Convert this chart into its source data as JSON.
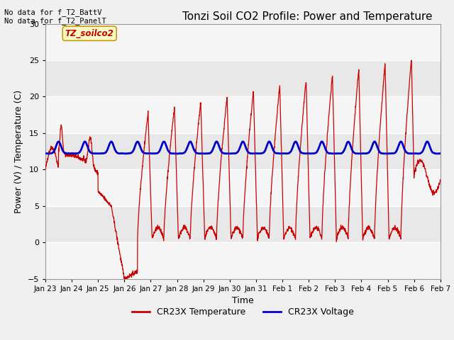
{
  "title": "Tonzi Soil CO2 Profile: Power and Temperature",
  "xlabel": "Time",
  "ylabel": "Power (V) / Temperature (C)",
  "ylim": [
    -5,
    30
  ],
  "yticks": [
    -5,
    0,
    5,
    10,
    15,
    20,
    25,
    30
  ],
  "xtick_labels": [
    "Jan 23",
    "Jan 24",
    "Jan 25",
    "Jan 26",
    "Jan 27",
    "Jan 28",
    "Jan 29",
    "Jan 30",
    "Jan 31",
    "Feb 1",
    "Feb 2",
    "Feb 3",
    "Feb 4",
    "Feb 5",
    "Feb 6",
    "Feb 7"
  ],
  "legend_entries": [
    "CR23X Temperature",
    "CR23X Voltage"
  ],
  "legend_colors": [
    "#cc0000",
    "#0000cc"
  ],
  "annotation_text": "No data for f_T2_BattV\nNo data for f_T2_PanelT",
  "text_box_label": "TZ_soilco2",
  "text_box_color": "#cc0000",
  "text_box_bg": "#ffffcc",
  "text_box_border": "#cc9900",
  "fig_bg_color": "#f0f0f0",
  "plot_bg_color": "#e8e8e8",
  "title_fontsize": 11,
  "axis_fontsize": 9,
  "tick_fontsize": 8,
  "red_line_color": "#cc0000",
  "blue_line_color": "#0000cc",
  "grid_color": "#ffffff",
  "num_days": 15
}
